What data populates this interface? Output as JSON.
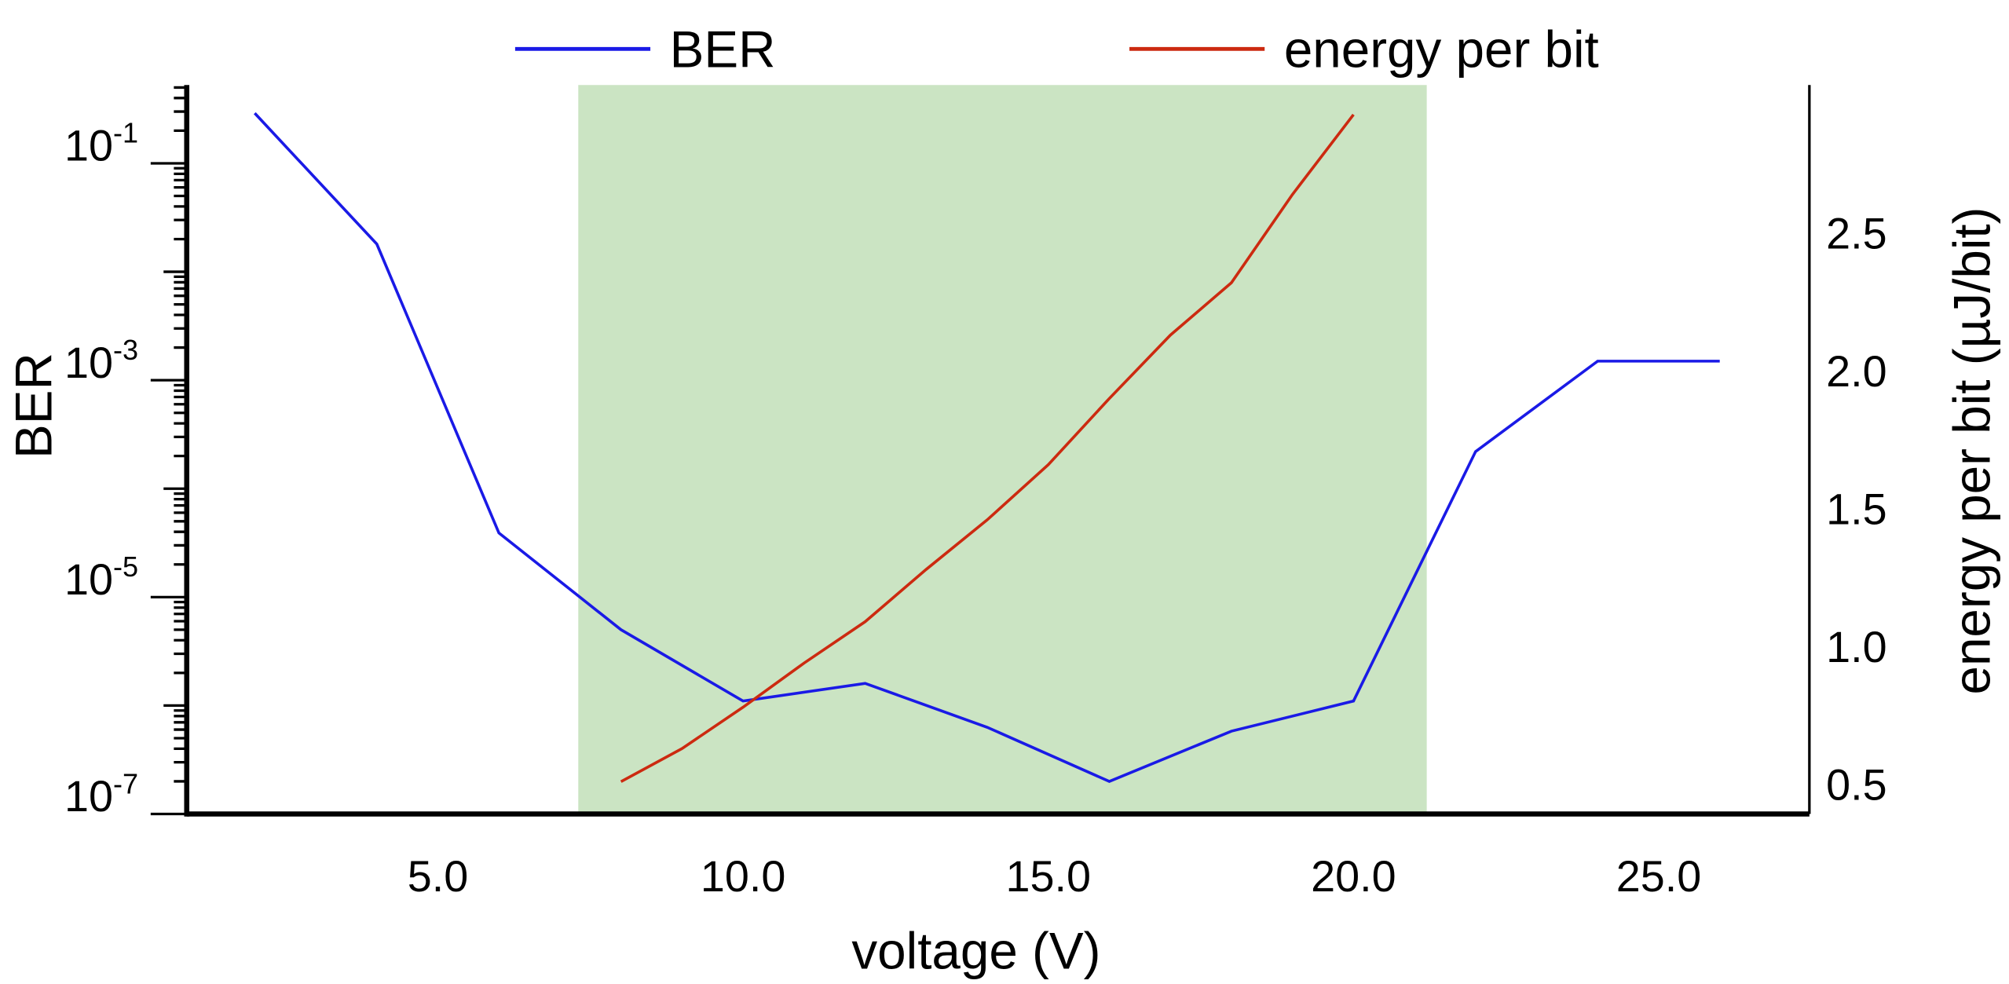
{
  "chart_data": {
    "type": "line",
    "title": "",
    "xlabel": "voltage (V)",
    "ylabel": "BER",
    "y2label": "energy per bit (µJ/bit)",
    "xlim": [
      0.9,
      27.5
    ],
    "ylim": [
      1e-07,
      0.57
    ],
    "yscale": "log",
    "y2lim": [
      0.39,
      2.96
    ],
    "xticks": [
      5.0,
      10.0,
      15.0,
      20.0,
      25.0
    ],
    "xtick_labels": [
      "5.0",
      "10.0",
      "15.0",
      "20.0",
      "25.0"
    ],
    "yticks_labels": [
      {
        "value": 0.1,
        "base": "10",
        "exp": "-1"
      },
      {
        "value": 0.001,
        "base": "10",
        "exp": "-3"
      },
      {
        "value": 1e-05,
        "base": "10",
        "exp": "-5"
      },
      {
        "value": 1e-07,
        "base": "10",
        "exp": "-7"
      }
    ],
    "y2ticks": [
      0.5,
      1.0,
      1.5,
      2.0,
      2.5
    ],
    "y2tick_labels": [
      "0.5",
      "1.0",
      "1.5",
      "2.0",
      "2.5"
    ],
    "grid": false,
    "legend_position": "top",
    "shaded_region": {
      "x": [
        7.3,
        21.2
      ],
      "color": "#cbe4c3"
    },
    "series": [
      {
        "name": "BER",
        "axis": "left",
        "color": "#1a1ae6",
        "x": [
          2,
          4,
          6,
          8,
          10,
          12,
          14,
          16,
          18,
          20,
          22,
          24,
          26
        ],
        "y": [
          0.29,
          0.018,
          3.9e-05,
          5e-06,
          1.1e-06,
          1.6e-06,
          6.3e-07,
          2e-07,
          5.8e-07,
          1.1e-06,
          0.00022,
          0.0015,
          0.0015
        ]
      },
      {
        "name": "energy per bit",
        "axis": "right",
        "color": "#cc2a10",
        "x": [
          8,
          9,
          10,
          11,
          12,
          13,
          14,
          15,
          16,
          17,
          18,
          19,
          20
        ],
        "y": [
          0.51,
          0.63,
          0.78,
          0.94,
          1.09,
          1.28,
          1.46,
          1.66,
          1.9,
          2.13,
          2.32,
          2.64,
          2.93
        ]
      }
    ]
  }
}
